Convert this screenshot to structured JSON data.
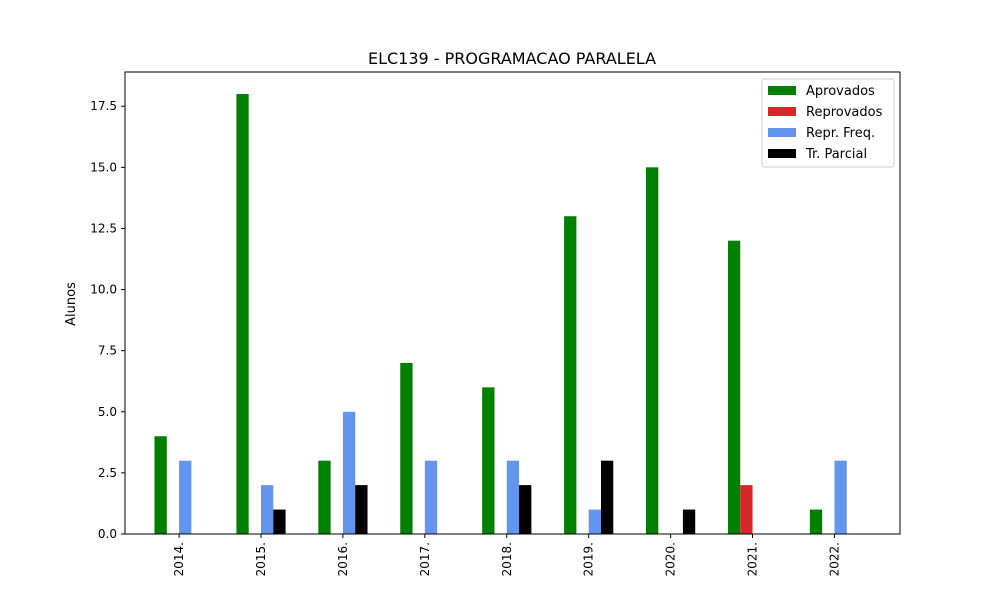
{
  "chart_data": {
    "type": "bar",
    "title": "ELC139 - PROGRAMACAO PARALELA",
    "xlabel": "",
    "ylabel": "Alunos",
    "ylim": [
      0,
      18.9
    ],
    "yticks": [
      0.0,
      2.5,
      5.0,
      7.5,
      10.0,
      12.5,
      15.0,
      17.5
    ],
    "ytick_labels": [
      "0.0",
      "2.5",
      "5.0",
      "7.5",
      "10.0",
      "12.5",
      "15.0",
      "17.5"
    ],
    "categories": [
      "2014.",
      "2015.",
      "2016.",
      "2017.",
      "2018.",
      "2019.",
      "2020.",
      "2021.",
      "2022."
    ],
    "series": [
      {
        "name": "Aprovados",
        "color": "#008000",
        "values": [
          4,
          18,
          3,
          7,
          6,
          13,
          15,
          12,
          1
        ]
      },
      {
        "name": "Reprovados",
        "color": "#d62728",
        "values": [
          0,
          0,
          0,
          0,
          0,
          0,
          0,
          2,
          0
        ]
      },
      {
        "name": "Repr. Freq.",
        "color": "#6495ed",
        "values": [
          3,
          2,
          5,
          3,
          3,
          1,
          0,
          0,
          3
        ]
      },
      {
        "name": "Tr. Parcial",
        "color": "#000000",
        "values": [
          0,
          1,
          2,
          0,
          2,
          3,
          1,
          0,
          0
        ]
      }
    ],
    "grid": false,
    "legend_position": "top-right"
  }
}
